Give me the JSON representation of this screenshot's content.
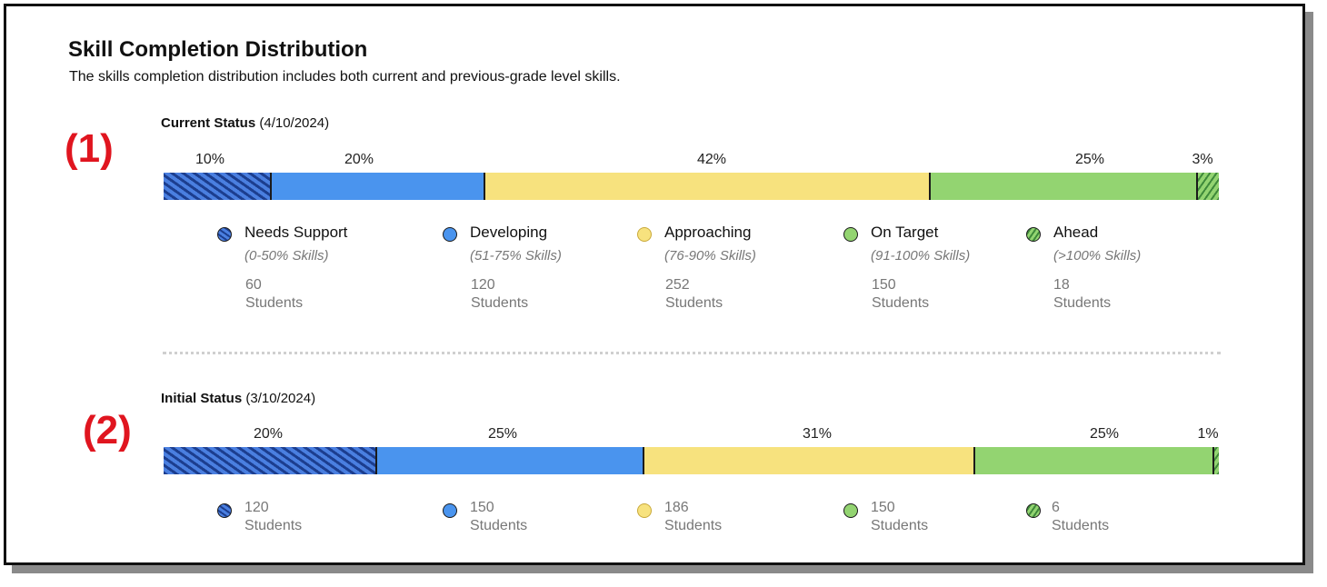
{
  "header": {
    "title": "Skill Completion Distribution",
    "subtitle": "The skills completion distribution includes both current and previous-grade level skills."
  },
  "categories": [
    {
      "name": "Needs Support",
      "range": "(0-50% Skills)",
      "color": "#1c3e8f",
      "icon": "needs-support-icon"
    },
    {
      "name": "Developing",
      "range": "(51-75% Skills)",
      "color": "#4a94ee",
      "icon": "developing-icon"
    },
    {
      "name": "Approaching",
      "range": "(76-90% Skills)",
      "color": "#f7e27e",
      "icon": "approaching-icon"
    },
    {
      "name": "On Target",
      "range": "(91-100% Skills)",
      "color": "#93d471",
      "icon": "on-target-icon"
    },
    {
      "name": "Ahead",
      "range": "(>100% Skills)",
      "color": "#3f8a3b",
      "icon": "ahead-icon"
    }
  ],
  "current": {
    "section_number": "(1)",
    "label_bold": "Current Status",
    "date": "(4/10/2024)",
    "percents": [
      "10%",
      "20%",
      "42%",
      "25%",
      "3%"
    ],
    "counts": [
      "60",
      "120",
      "252",
      "150",
      "18"
    ],
    "students_label": "Students"
  },
  "initial": {
    "section_number": "(2)",
    "label_bold": "Initial Status",
    "date": "(3/10/2024)",
    "percents": [
      "20%",
      "25%",
      "31%",
      "25%",
      "1%"
    ],
    "counts": [
      "120",
      "150",
      "186",
      "150",
      "6"
    ],
    "students_label": "Students"
  },
  "chart_data": [
    {
      "type": "bar",
      "stacked": true,
      "orientation": "horizontal",
      "title": "Current Status (4/10/2024)",
      "categories": [
        "Needs Support",
        "Developing",
        "Approaching",
        "On Target",
        "Ahead"
      ],
      "values_percent": [
        10,
        20,
        42,
        25,
        3
      ],
      "students": [
        60,
        120,
        252,
        150,
        18
      ]
    },
    {
      "type": "bar",
      "stacked": true,
      "orientation": "horizontal",
      "title": "Initial Status (3/10/2024)",
      "categories": [
        "Needs Support",
        "Developing",
        "Approaching",
        "On Target",
        "Ahead"
      ],
      "values_percent": [
        20,
        25,
        31,
        25,
        1
      ],
      "students": [
        120,
        150,
        186,
        150,
        6
      ]
    }
  ]
}
